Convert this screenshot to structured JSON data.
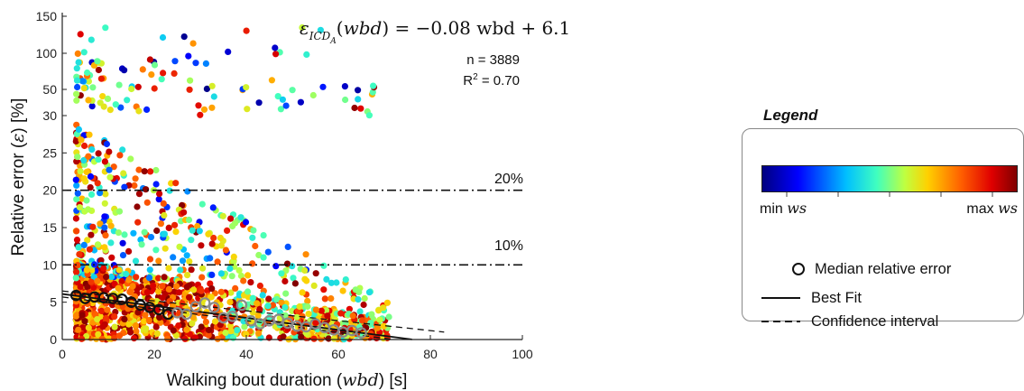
{
  "chart_data": {
    "type": "scatter",
    "equation": {
      "lhs": "ε",
      "subscript": "ICD",
      "sub_subscript": "A",
      "arg": "wbd",
      "rhs": " = −0.08 wbd + 6.1"
    },
    "stats": {
      "n": "n = 3889",
      "r2_label": "R",
      "r2_sup": "2",
      "r2_value": " = 0.70"
    },
    "xlabel_prefix": "Walking bout duration (",
    "xlabel_var": "wbd",
    "xlabel_suffix": ") [s]",
    "ylabel_prefix": "Relative error (",
    "ylabel_var": "ε",
    "ylabel_suffix": ") [%]",
    "xlim": [
      0,
      100
    ],
    "x_ticks": [
      "0",
      "20",
      "40",
      "60",
      "80",
      "100"
    ],
    "y_ticks": [
      "0",
      "5",
      "10",
      "15",
      "20",
      "25",
      "30",
      "50",
      "100",
      "150"
    ],
    "y_axis": "broken: linear 0–30, compressed 30–150",
    "reference_lines": [
      {
        "y": 20,
        "label": "20%"
      },
      {
        "y": 10,
        "label": "10%"
      }
    ],
    "best_fit": {
      "slope": -0.08,
      "intercept": 6.1,
      "x_range": [
        0,
        76
      ]
    },
    "confidence_interval": {
      "upper": [
        [
          0,
          6.5
        ],
        [
          83,
          1.0
        ]
      ],
      "lower": [
        [
          0,
          5.7
        ],
        [
          72,
          0.0
        ]
      ]
    },
    "median_relative_error": [
      [
        3,
        5.9
      ],
      [
        5,
        5.5
      ],
      [
        7,
        5.7
      ],
      [
        9,
        5.6
      ],
      [
        11,
        5.5
      ],
      [
        13,
        5.4
      ],
      [
        15,
        5.0
      ],
      [
        17,
        4.6
      ],
      [
        19,
        4.3
      ],
      [
        21,
        4.0
      ],
      [
        23,
        3.4
      ],
      [
        25,
        3.6
      ],
      [
        27,
        3.4
      ],
      [
        29,
        4.4
      ],
      [
        31,
        4.9
      ],
      [
        33,
        4.3
      ],
      [
        35,
        2.9
      ],
      [
        37,
        3.1
      ],
      [
        39,
        4.6
      ],
      [
        41,
        2.5
      ],
      [
        43,
        2.1
      ],
      [
        45,
        2.5
      ],
      [
        47,
        2.7
      ],
      [
        49,
        2.2
      ],
      [
        51,
        1.8
      ],
      [
        53,
        1.7
      ],
      [
        55,
        2.1
      ],
      [
        57,
        1.6
      ],
      [
        59,
        1.3
      ],
      [
        61,
        1.0
      ],
      [
        63,
        1.2
      ],
      [
        65,
        0.9
      ]
    ],
    "color_encoding": "walking speed (ws), jet colormap from min ws to max ws",
    "colorbar_colors": [
      "#00007f",
      "#0000ff",
      "#00bfff",
      "#40ffbf",
      "#bfff40",
      "#ffd000",
      "#ff6000",
      "#e00000",
      "#7f0000"
    ],
    "grid": false
  },
  "legend": {
    "title": "Legend",
    "min_label": "min",
    "max_label": "max",
    "var": "ws",
    "median_label": "Median relative error",
    "best_fit_label": "Best Fit",
    "ci_label": "Confidence interval"
  }
}
